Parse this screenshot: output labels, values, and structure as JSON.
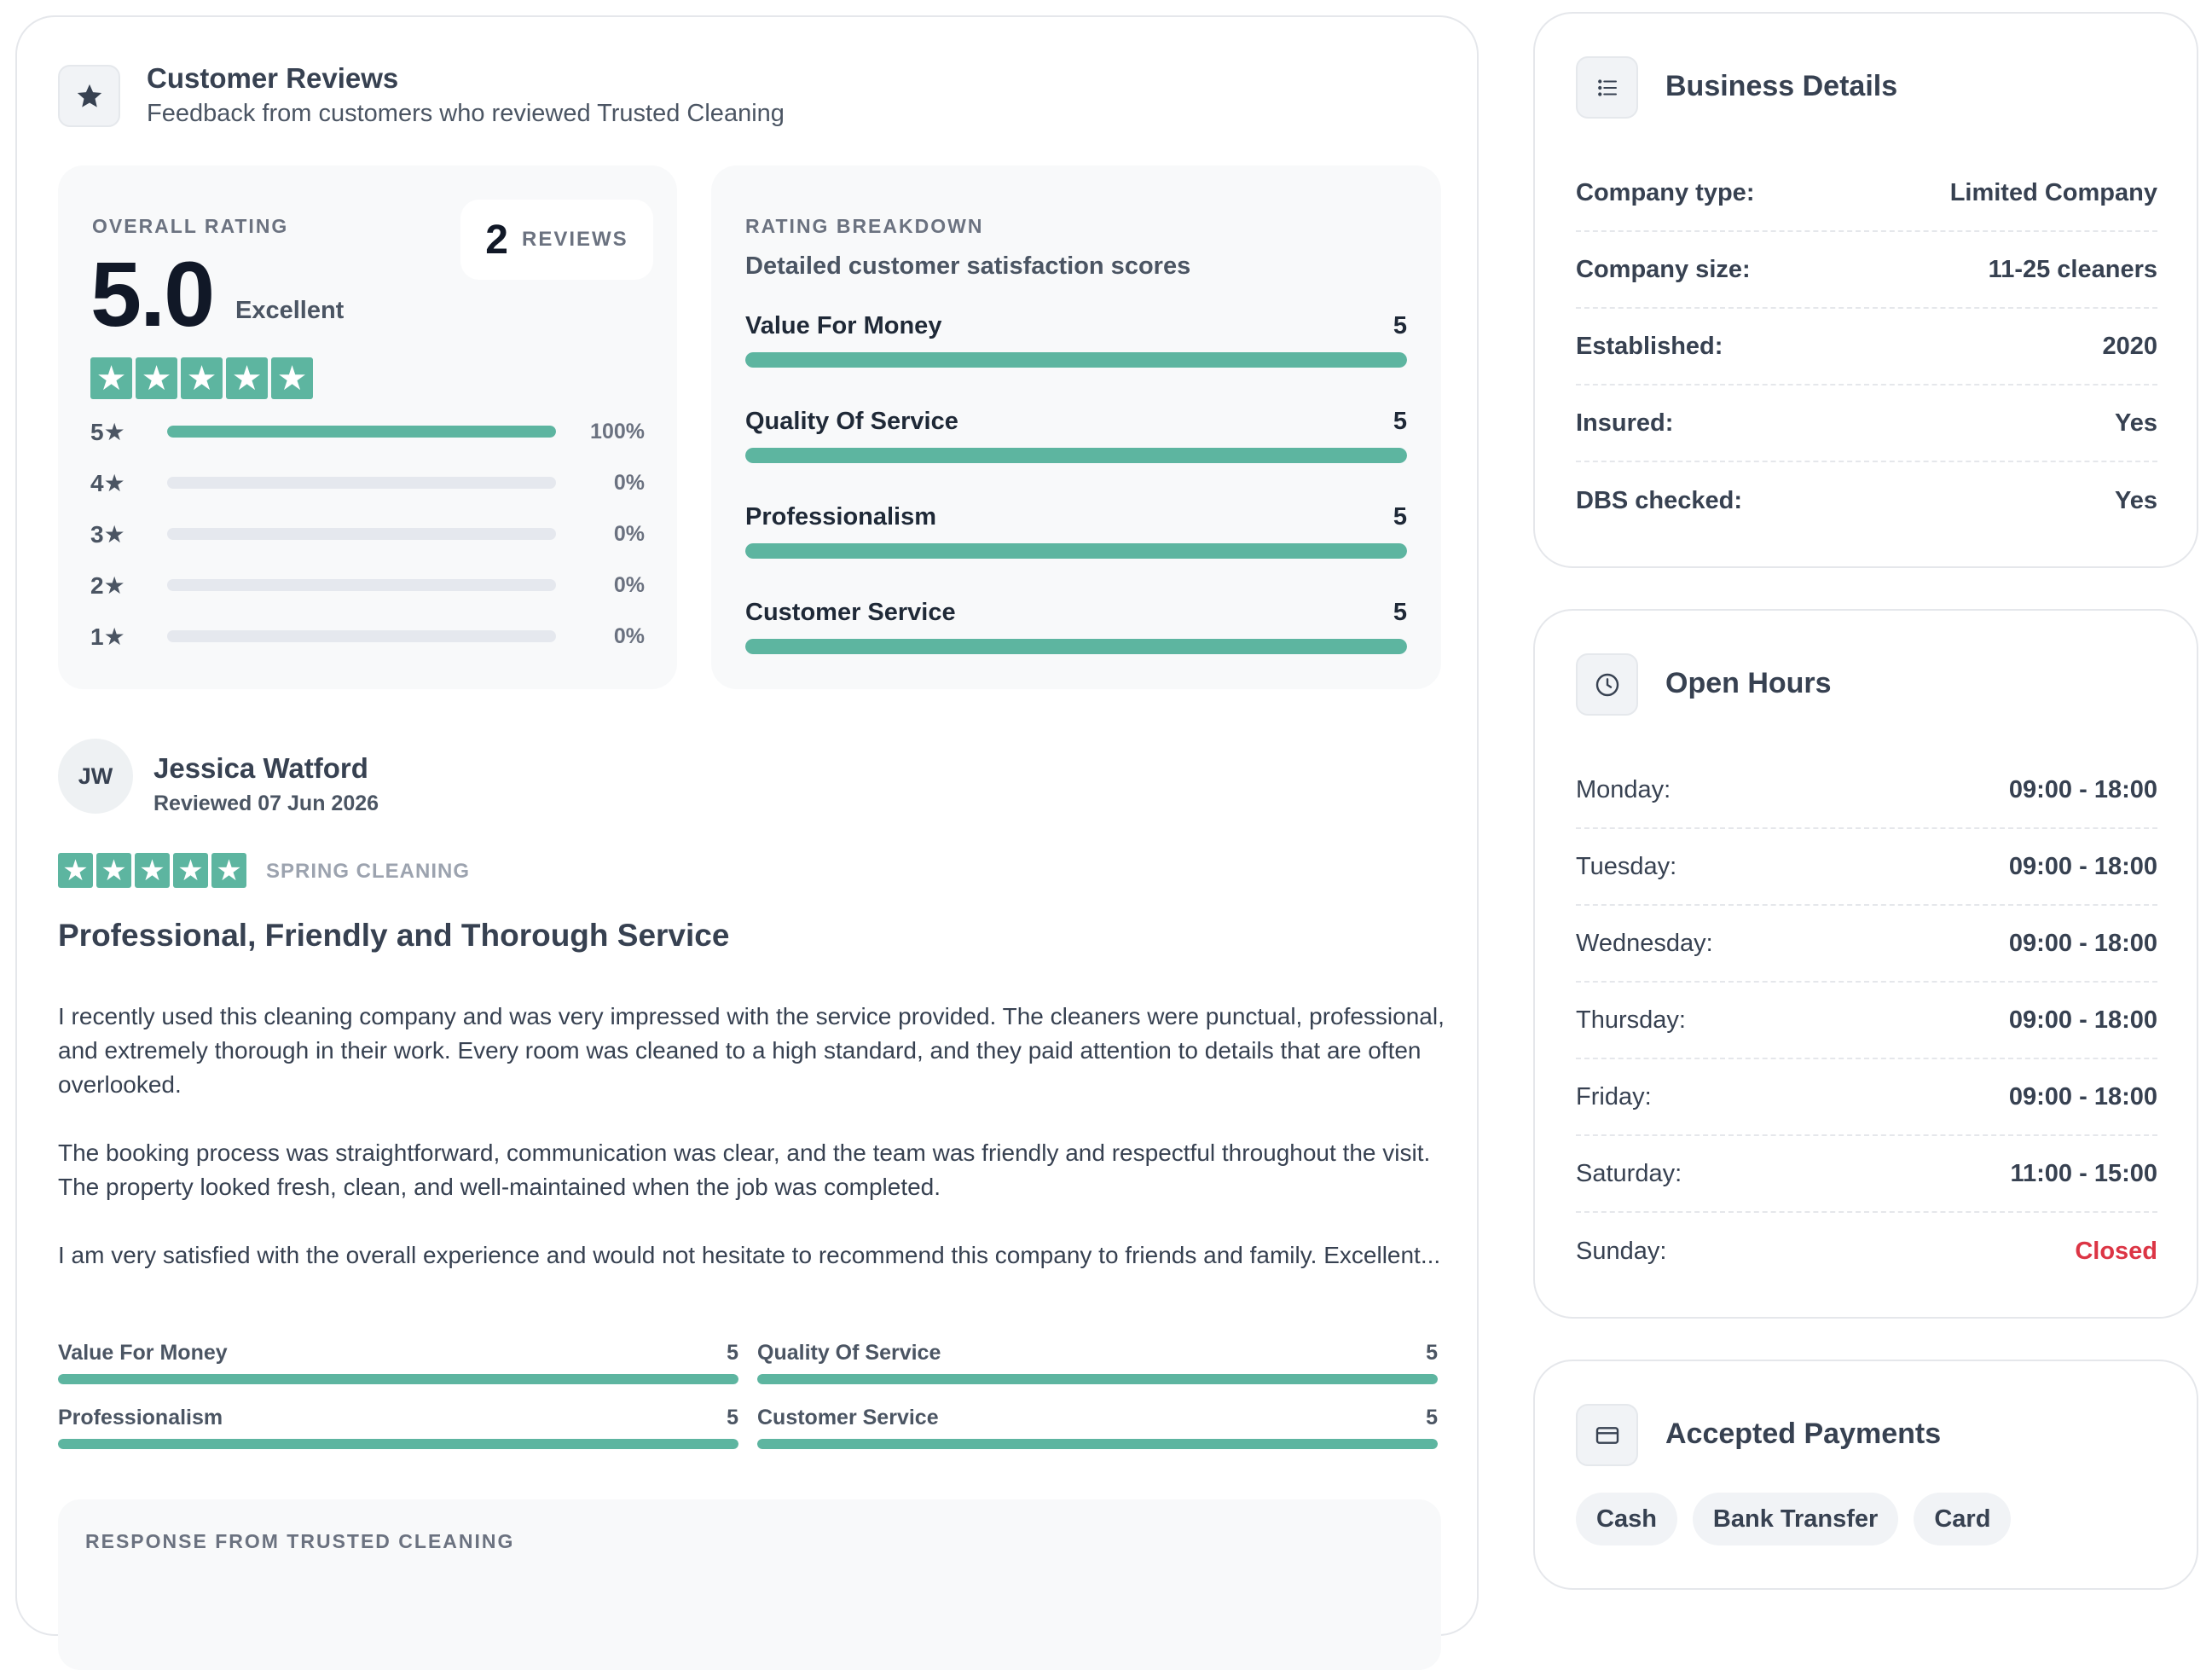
{
  "reviews": {
    "title": "Customer Reviews",
    "subtitle": "Feedback from customers who reviewed Trusted Cleaning",
    "overall": {
      "label": "OVERALL RATING",
      "score": "5.0",
      "descriptor": "Excellent",
      "stars": 5,
      "review_count": "2",
      "review_count_label": "REVIEWS",
      "distribution": [
        {
          "label": "5★",
          "percent": "100%",
          "fraction": 1.0
        },
        {
          "label": "4★",
          "percent": "0%",
          "fraction": 0
        },
        {
          "label": "3★",
          "percent": "0%",
          "fraction": 0
        },
        {
          "label": "2★",
          "percent": "0%",
          "fraction": 0
        },
        {
          "label": "1★",
          "percent": "0%",
          "fraction": 0
        }
      ]
    },
    "breakdown": {
      "label": "RATING BREAKDOWN",
      "subtitle": "Detailed customer satisfaction scores",
      "max": 5,
      "categories": [
        {
          "name": "Value For Money",
          "score": "5"
        },
        {
          "name": "Quality Of Service",
          "score": "5"
        },
        {
          "name": "Professionalism",
          "score": "5"
        },
        {
          "name": "Customer Service",
          "score": "5"
        }
      ]
    },
    "review": {
      "initials": "JW",
      "name": "Jessica Watford",
      "date": "Reviewed 07 Jun 2026",
      "stars": 5,
      "tag": "SPRING CLEANING",
      "headline": "Professional, Friendly and Thorough Service",
      "paragraphs": [
        "I recently used this cleaning company and was very impressed with the service provided. The cleaners were punctual, professional, and extremely thorough in their work. Every room was cleaned to a high standard, and they paid attention to details that are often overlooked.",
        "The booking process was straightforward, communication was clear, and the team was friendly and respectful throughout the visit. The property looked fresh, clean, and well-maintained when the job was completed.",
        "I am very satisfied with the overall experience and would not hesitate to recommend this company to friends and family. Excellent..."
      ],
      "scores": [
        {
          "name": "Value For Money",
          "score": "5"
        },
        {
          "name": "Quality Of Service",
          "score": "5"
        },
        {
          "name": "Professionalism",
          "score": "5"
        },
        {
          "name": "Customer Service",
          "score": "5"
        }
      ],
      "response_label": "RESPONSE FROM TRUSTED CLEANING"
    }
  },
  "business": {
    "title": "Business Details",
    "rows": [
      {
        "key": "Company type:",
        "value": "Limited Company"
      },
      {
        "key": "Company size:",
        "value": "11-25 cleaners"
      },
      {
        "key": "Established:",
        "value": "2020"
      },
      {
        "key": "Insured:",
        "value": "Yes"
      },
      {
        "key": "DBS checked:",
        "value": "Yes"
      }
    ]
  },
  "hours": {
    "title": "Open Hours",
    "rows": [
      {
        "key": "Monday:",
        "value": "09:00 - 18:00"
      },
      {
        "key": "Tuesday:",
        "value": "09:00 - 18:00"
      },
      {
        "key": "Wednesday:",
        "value": "09:00 - 18:00"
      },
      {
        "key": "Thursday:",
        "value": "09:00 - 18:00"
      },
      {
        "key": "Friday:",
        "value": "09:00 - 18:00"
      },
      {
        "key": "Saturday:",
        "value": "11:00 - 15:00"
      },
      {
        "key": "Sunday:",
        "value": "Closed"
      }
    ]
  },
  "payments": {
    "title": "Accepted Payments",
    "methods": [
      "Cash",
      "Bank Transfer",
      "Card"
    ]
  },
  "colors": {
    "accent": "#5db5a0",
    "closed": "#dc3545",
    "track": "#e5e8ee"
  },
  "icons": {
    "reviews": "star-icon",
    "business": "list-icon",
    "hours": "clock-icon",
    "payments": "credit-card-icon"
  }
}
